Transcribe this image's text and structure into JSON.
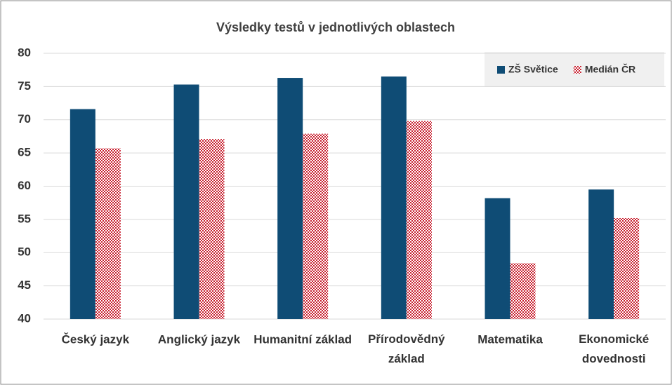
{
  "chart_data": {
    "type": "bar",
    "title": "Výsledky testů v jednotlivých oblastech",
    "categories": [
      "Český jazyk",
      "Anglický jazyk",
      "Humanitní základ",
      "Přírodovědný základ",
      "Matematika",
      "Ekonomické dovednosti"
    ],
    "series": [
      {
        "name": "ZŠ Světice",
        "color": "#0f4c75",
        "values": [
          71.6,
          75.3,
          76.3,
          76.5,
          58.2,
          59.5
        ]
      },
      {
        "name": "Medián ČR",
        "color": "#c8202f",
        "pattern": "checker",
        "values": [
          65.7,
          67.1,
          67.9,
          69.8,
          48.4,
          55.2
        ]
      }
    ],
    "ylim": [
      40,
      80
    ],
    "yticks": [
      40,
      45,
      50,
      55,
      60,
      65,
      70,
      75,
      80
    ],
    "grid": true,
    "legend": "top-right"
  }
}
